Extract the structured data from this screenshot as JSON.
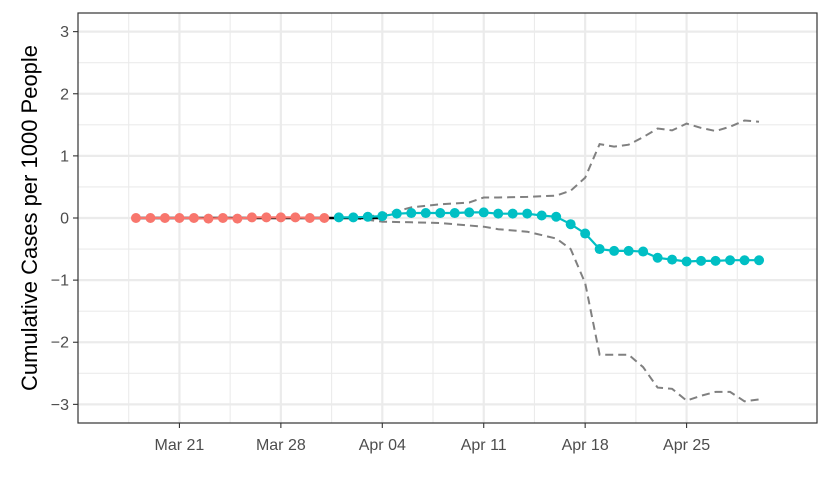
{
  "chart_data": {
    "type": "line",
    "title": "",
    "xlabel": "",
    "ylabel": "Cumulative Cases per 1000 People",
    "ylim": [
      -3.3,
      3.3
    ],
    "yticks": [
      -3,
      -2,
      -1,
      0,
      1,
      2,
      3
    ],
    "ytick_labels": [
      "−3",
      "−2",
      "−1",
      "0",
      "1",
      "2",
      "3"
    ],
    "xlim": [
      "2020-03-14",
      "2020-05-04"
    ],
    "xticks": [
      "2020-03-21",
      "2020-03-28",
      "2020-04-04",
      "2020-04-11",
      "2020-04-18",
      "2020-04-25"
    ],
    "xtick_labels": [
      "Mar 21",
      "Mar 28",
      "Apr 04",
      "Apr 11",
      "Apr 18",
      "Apr 25"
    ],
    "grid": true,
    "legend": "none",
    "colors": {
      "pre": "#f8766d",
      "post": "#00bfc4",
      "band": "#808080",
      "trend": "#000000"
    },
    "series": [
      {
        "x": [
          "2020-03-18",
          "2020-03-19",
          "2020-03-20",
          "2020-03-21",
          "2020-03-22",
          "2020-03-23",
          "2020-03-24",
          "2020-03-25",
          "2020-03-26",
          "2020-03-27",
          "2020-03-28",
          "2020-03-29",
          "2020-03-30",
          "2020-03-31"
        ],
        "values": [
          0.0,
          0.0,
          0.0,
          0.0,
          0.0,
          -0.01,
          0.0,
          -0.01,
          0.01,
          0.01,
          0.01,
          0.01,
          0.0,
          0.0
        ]
      },
      {
        "x": [
          "2020-04-01",
          "2020-04-02",
          "2020-04-03",
          "2020-04-04",
          "2020-04-05",
          "2020-04-06",
          "2020-04-07",
          "2020-04-08",
          "2020-04-09",
          "2020-04-10",
          "2020-04-11",
          "2020-04-12",
          "2020-04-13",
          "2020-04-14",
          "2020-04-15",
          "2020-04-16",
          "2020-04-17",
          "2020-04-18",
          "2020-04-19",
          "2020-04-20",
          "2020-04-21",
          "2020-04-22",
          "2020-04-23",
          "2020-04-24",
          "2020-04-25",
          "2020-04-26",
          "2020-04-27",
          "2020-04-28",
          "2020-04-29",
          "2020-04-30"
        ],
        "values": [
          0.01,
          0.01,
          0.02,
          0.03,
          0.07,
          0.08,
          0.08,
          0.08,
          0.08,
          0.09,
          0.09,
          0.07,
          0.07,
          0.07,
          0.04,
          0.02,
          -0.1,
          -0.25,
          -0.5,
          -0.53,
          -0.53,
          -0.54,
          -0.64,
          -0.67,
          -0.7,
          -0.69,
          -0.69,
          -0.68,
          -0.68,
          -0.68
        ]
      }
    ],
    "band_upper": {
      "x": [
        "2020-04-02",
        "2020-04-04",
        "2020-04-06",
        "2020-04-08",
        "2020-04-10",
        "2020-04-11",
        "2020-04-12",
        "2020-04-14",
        "2020-04-16",
        "2020-04-17",
        "2020-04-18",
        "2020-04-19",
        "2020-04-20",
        "2020-04-21",
        "2020-04-22",
        "2020-04-23",
        "2020-04-24",
        "2020-04-25",
        "2020-04-26",
        "2020-04-27",
        "2020-04-28",
        "2020-04-29",
        "2020-04-30"
      ],
      "values": [
        0.0,
        0.05,
        0.17,
        0.22,
        0.25,
        0.33,
        0.33,
        0.34,
        0.36,
        0.44,
        0.65,
        1.19,
        1.15,
        1.18,
        1.3,
        1.44,
        1.41,
        1.52,
        1.45,
        1.4,
        1.47,
        1.57,
        1.55
      ]
    },
    "band_lower": {
      "x": [
        "2020-04-02",
        "2020-04-04",
        "2020-04-06",
        "2020-04-08",
        "2020-04-10",
        "2020-04-11",
        "2020-04-12",
        "2020-04-14",
        "2020-04-16",
        "2020-04-17",
        "2020-04-18",
        "2020-04-19",
        "2020-04-20",
        "2020-04-21",
        "2020-04-22",
        "2020-04-23",
        "2020-04-24",
        "2020-04-25",
        "2020-04-26",
        "2020-04-27",
        "2020-04-28",
        "2020-04-29",
        "2020-04-30"
      ],
      "values": [
        0.0,
        -0.06,
        -0.07,
        -0.08,
        -0.12,
        -0.14,
        -0.18,
        -0.22,
        -0.33,
        -0.5,
        -1.05,
        -2.2,
        -2.2,
        -2.2,
        -2.4,
        -2.73,
        -2.75,
        -2.94,
        -2.86,
        -2.8,
        -2.8,
        -2.95,
        -2.92
      ]
    },
    "trend_line": {
      "x": [
        "2020-03-18",
        "2020-04-04"
      ],
      "values": [
        0.0,
        0.0
      ]
    }
  }
}
